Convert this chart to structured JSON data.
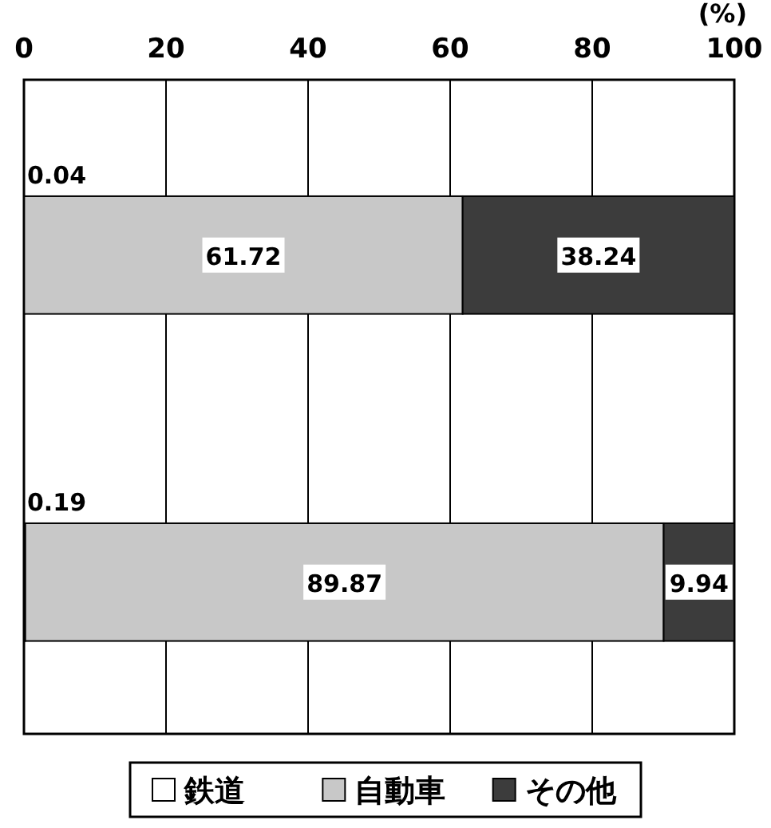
{
  "chart_data": {
    "type": "bar",
    "orientation": "horizontal",
    "stacked": true,
    "xlabel": "(%)",
    "categories": [
      null,
      null
    ],
    "series": [
      {
        "name": "鉄道",
        "color": "#ffffff",
        "values": [
          0.04,
          0.19
        ]
      },
      {
        "name": "自動車",
        "color": "#c8c8c8",
        "values": [
          61.72,
          89.87
        ]
      },
      {
        "name": "その他",
        "color": "#3c3c3c",
        "values": [
          38.24,
          9.94
        ]
      }
    ],
    "xlim": [
      0,
      100
    ],
    "xticks": [
      0,
      20,
      40,
      60,
      80,
      100
    ],
    "grid": "x",
    "legend": "bottom",
    "data_labels": true
  }
}
